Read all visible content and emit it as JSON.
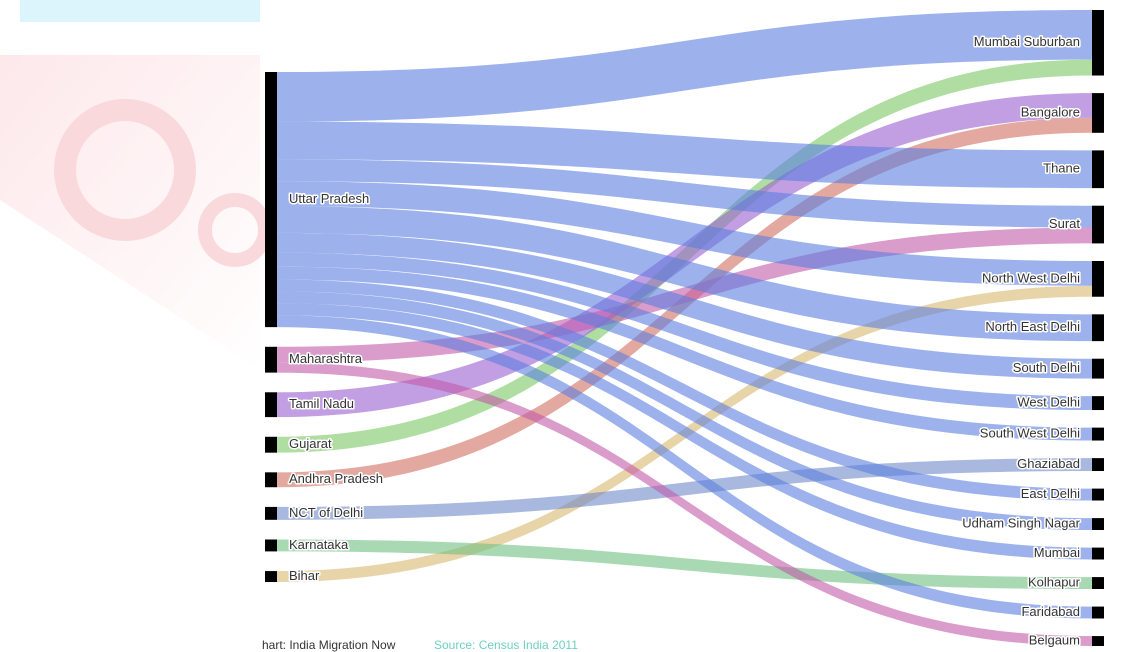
{
  "chart_data": {
    "type": "sankey",
    "sources": [
      {
        "name": "Uttar Pradesh",
        "color": "#5b7fe0"
      },
      {
        "name": "Maharashtra",
        "color": "#c25aa8"
      },
      {
        "name": "Tamil Nadu",
        "color": "#9a5fd0"
      },
      {
        "name": "Gujarat",
        "color": "#7cc864"
      },
      {
        "name": "Andhra Pradesh",
        "color": "#d07060"
      },
      {
        "name": "NCT of Delhi",
        "color": "#7088c8"
      },
      {
        "name": "Karnataka",
        "color": "#70c080"
      },
      {
        "name": "Bihar",
        "color": "#d8b870"
      }
    ],
    "targets": [
      "Mumbai Suburban",
      "Bangalore",
      "Thane",
      "Surat",
      "North West Delhi",
      "North East Delhi",
      "South Delhi",
      "West Delhi",
      "South West Delhi",
      "Ghaziabad",
      "East Delhi",
      "Udham Singh Nagar",
      "Mumbai",
      "Kolhapur",
      "Faridabad",
      "Belgaum"
    ],
    "links": [
      {
        "source": 0,
        "target": 0,
        "value": 50
      },
      {
        "source": 3,
        "target": 0,
        "value": 16
      },
      {
        "source": 2,
        "target": 1,
        "value": 25
      },
      {
        "source": 4,
        "target": 1,
        "value": 15
      },
      {
        "source": 0,
        "target": 2,
        "value": 38
      },
      {
        "source": 0,
        "target": 3,
        "value": 22
      },
      {
        "source": 1,
        "target": 3,
        "value": 16
      },
      {
        "source": 0,
        "target": 4,
        "value": 25
      },
      {
        "source": 7,
        "target": 4,
        "value": 11
      },
      {
        "source": 0,
        "target": 5,
        "value": 27
      },
      {
        "source": 0,
        "target": 6,
        "value": 20
      },
      {
        "source": 0,
        "target": 7,
        "value": 14
      },
      {
        "source": 0,
        "target": 8,
        "value": 13
      },
      {
        "source": 5,
        "target": 9,
        "value": 13
      },
      {
        "source": 0,
        "target": 10,
        "value": 12
      },
      {
        "source": 0,
        "target": 11,
        "value": 12
      },
      {
        "source": 0,
        "target": 12,
        "value": 12
      },
      {
        "source": 6,
        "target": 13,
        "value": 12
      },
      {
        "source": 0,
        "target": 14,
        "value": 12
      },
      {
        "source": 1,
        "target": 15,
        "value": 10
      }
    ],
    "credit": "hart: India Migration Now",
    "source_note": "Source: Census India 2011"
  }
}
